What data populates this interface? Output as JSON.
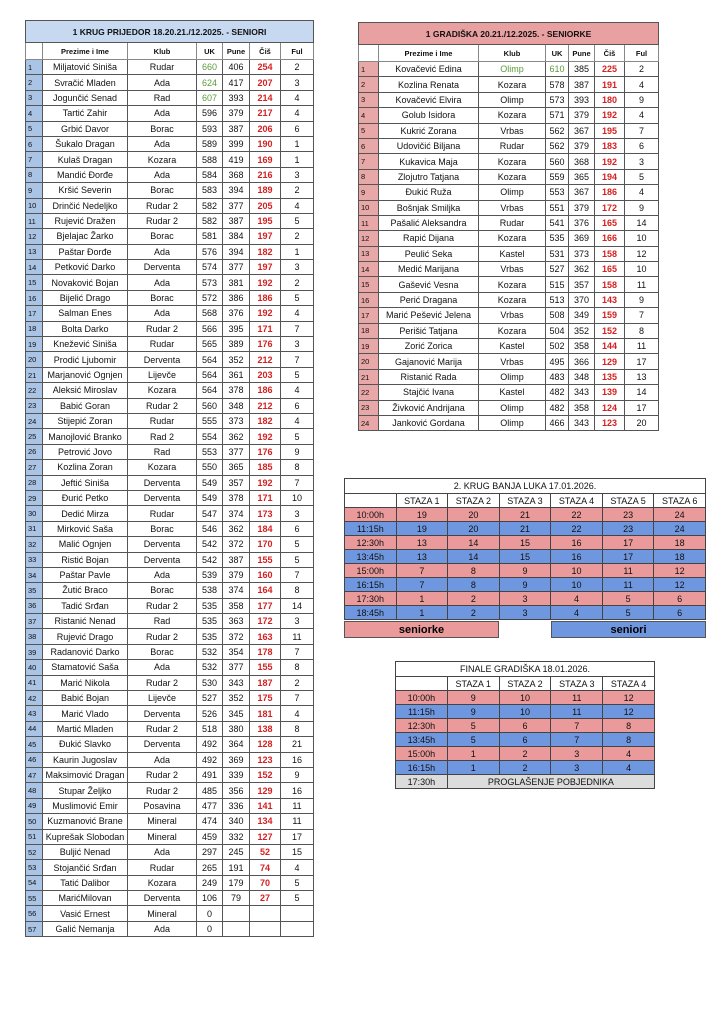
{
  "colors": {
    "senior_header": "#c6d9f1",
    "seniorke_header": "#e8a0a0",
    "pink": "#ea9a9a",
    "blue": "#6f97e0",
    "cis": "#d42020",
    "top_uk": "#5a9a3a"
  },
  "men": {
    "title": "1 KRUG PRIJEDOR 18.20.21./12.2025. - SENIORI",
    "headers": [
      "",
      "Prezime i Ime",
      "Klub",
      "UK",
      "Pune",
      "Čiš",
      "Ful"
    ],
    "rows": [
      [
        "1",
        "Miljatović Siniša",
        "Rudar",
        "660",
        "406",
        "254",
        "2"
      ],
      [
        "2",
        "Svračić Mladen",
        "Ada",
        "624",
        "417",
        "207",
        "3"
      ],
      [
        "3",
        "Jogunčić Senad",
        "Rad",
        "607",
        "393",
        "214",
        "4"
      ],
      [
        "4",
        "Tartić Zahir",
        "Ada",
        "596",
        "379",
        "217",
        "4"
      ],
      [
        "5",
        "Grbić Davor",
        "Borac",
        "593",
        "387",
        "206",
        "6"
      ],
      [
        "6",
        "Šukalo Dragan",
        "Ada",
        "589",
        "399",
        "190",
        "1"
      ],
      [
        "7",
        "Kulaš Dragan",
        "Kozara",
        "588",
        "419",
        "169",
        "1"
      ],
      [
        "8",
        "Mandić Đorđe",
        "Ada",
        "584",
        "368",
        "216",
        "3"
      ],
      [
        "9",
        "Kršić Severin",
        "Borac",
        "583",
        "394",
        "189",
        "2"
      ],
      [
        "10",
        "Drinčić Nedeljko",
        "Rudar 2",
        "582",
        "377",
        "205",
        "4"
      ],
      [
        "11",
        "Rujević Dražen",
        "Rudar 2",
        "582",
        "387",
        "195",
        "5"
      ],
      [
        "12",
        "Bjelajac Žarko",
        "Borac",
        "581",
        "384",
        "197",
        "2"
      ],
      [
        "13",
        "Paštar Đorđe",
        "Ada",
        "576",
        "394",
        "182",
        "1"
      ],
      [
        "14",
        "Petković Darko",
        "Derventa",
        "574",
        "377",
        "197",
        "3"
      ],
      [
        "15",
        "Novaković Bojan",
        "Ada",
        "573",
        "381",
        "192",
        "2"
      ],
      [
        "16",
        "Bijelić Drago",
        "Borac",
        "572",
        "386",
        "186",
        "5"
      ],
      [
        "17",
        "Salman Enes",
        "Ada",
        "568",
        "376",
        "192",
        "4"
      ],
      [
        "18",
        "Bolta Darko",
        "Rudar 2",
        "566",
        "395",
        "171",
        "7"
      ],
      [
        "19",
        "Knežević Siniša",
        "Rudar",
        "565",
        "389",
        "176",
        "3"
      ],
      [
        "20",
        "Prodić Ljubomir",
        "Derventa",
        "564",
        "352",
        "212",
        "7"
      ],
      [
        "21",
        "Marjanović Ognjen",
        "Lijevče",
        "564",
        "361",
        "203",
        "5"
      ],
      [
        "22",
        "Aleksić Miroslav",
        "Kozara",
        "564",
        "378",
        "186",
        "4"
      ],
      [
        "23",
        "Babić Goran",
        "Rudar 2",
        "560",
        "348",
        "212",
        "6"
      ],
      [
        "24",
        "Stijepić Zoran",
        "Rudar",
        "555",
        "373",
        "182",
        "4"
      ],
      [
        "25",
        "Manojlović Branko",
        "Rad 2",
        "554",
        "362",
        "192",
        "5"
      ],
      [
        "26",
        "Petrović Jovo",
        "Rad",
        "553",
        "377",
        "176",
        "9"
      ],
      [
        "27",
        "Kozlina Zoran",
        "Kozara",
        "550",
        "365",
        "185",
        "8"
      ],
      [
        "28",
        "Jeftić Siniša",
        "Derventa",
        "549",
        "357",
        "192",
        "7"
      ],
      [
        "29",
        "Đurić Petko",
        "Derventa",
        "549",
        "378",
        "171",
        "10"
      ],
      [
        "30",
        "Dedić Mirza",
        "Rudar",
        "547",
        "374",
        "173",
        "3"
      ],
      [
        "31",
        "Mirković Saša",
        "Borac",
        "546",
        "362",
        "184",
        "6"
      ],
      [
        "32",
        "Malić Ognjen",
        "Derventa",
        "542",
        "372",
        "170",
        "5"
      ],
      [
        "33",
        "Ristić Bojan",
        "Derventa",
        "542",
        "387",
        "155",
        "5"
      ],
      [
        "34",
        "Paštar Pavle",
        "Ada",
        "539",
        "379",
        "160",
        "7"
      ],
      [
        "35",
        "Žutić Braco",
        "Borac",
        "538",
        "374",
        "164",
        "8"
      ],
      [
        "36",
        "Tadić Srđan",
        "Rudar 2",
        "535",
        "358",
        "177",
        "14"
      ],
      [
        "37",
        "Ristanić Nenad",
        "Rad",
        "535",
        "363",
        "172",
        "3"
      ],
      [
        "38",
        "Rujević Drago",
        "Rudar 2",
        "535",
        "372",
        "163",
        "11"
      ],
      [
        "39",
        "Radanović Darko",
        "Borac",
        "532",
        "354",
        "178",
        "7"
      ],
      [
        "40",
        "Stamatović Saša",
        "Ada",
        "532",
        "377",
        "155",
        "8"
      ],
      [
        "41",
        "Marić Nikola",
        "Rudar 2",
        "530",
        "343",
        "187",
        "2"
      ],
      [
        "42",
        "Babić Bojan",
        "Lijevče",
        "527",
        "352",
        "175",
        "7"
      ],
      [
        "43",
        "Marić Vlado",
        "Derventa",
        "526",
        "345",
        "181",
        "4"
      ],
      [
        "44",
        "Martić Mladen",
        "Rudar 2",
        "518",
        "380",
        "138",
        "8"
      ],
      [
        "45",
        "Đukić Slavko",
        "Derventa",
        "492",
        "364",
        "128",
        "21"
      ],
      [
        "46",
        "Kaurin Jugoslav",
        "Ada",
        "492",
        "369",
        "123",
        "16"
      ],
      [
        "47",
        "Maksimović Dragan",
        "Rudar 2",
        "491",
        "339",
        "152",
        "9"
      ],
      [
        "48",
        "Stupar Željko",
        "Rudar 2",
        "485",
        "356",
        "129",
        "16"
      ],
      [
        "49",
        "Muslimović Emir",
        "Posavina",
        "477",
        "336",
        "141",
        "11"
      ],
      [
        "50",
        "Kuzmanović Brane",
        "Mineral",
        "474",
        "340",
        "134",
        "11"
      ],
      [
        "51",
        "Kuprešak Slobodan",
        "Mineral",
        "459",
        "332",
        "127",
        "17"
      ],
      [
        "52",
        "Buljić Nenad",
        "Ada",
        "297",
        "245",
        "52",
        "15"
      ],
      [
        "53",
        "Stojančić Srđan",
        "Rudar",
        "265",
        "191",
        "74",
        "4"
      ],
      [
        "54",
        "Tatić Dalibor",
        "Kozara",
        "249",
        "179",
        "70",
        "5"
      ],
      [
        "55",
        "MarićMilovan",
        "Derventa",
        "106",
        "79",
        "27",
        "5"
      ],
      [
        "56",
        "Vasić Ernest",
        "Mineral",
        "0",
        "",
        "",
        ""
      ],
      [
        "57",
        "Galić Nemanja",
        "Ada",
        "0",
        "",
        "",
        ""
      ]
    ]
  },
  "women": {
    "title": "1 GRADIŠKA 20.21./12.2025. - SENIORKE",
    "headers": [
      "",
      "Prezime i Ime",
      "Klub",
      "UK",
      "Pune",
      "Čiš",
      "Ful"
    ],
    "rows": [
      [
        "1",
        "Kovačević Edina",
        "Olimp",
        "610",
        "385",
        "225",
        "2"
      ],
      [
        "2",
        "Kozlina Renata",
        "Kozara",
        "578",
        "387",
        "191",
        "4"
      ],
      [
        "3",
        "Kovačević Elvira",
        "Olimp",
        "573",
        "393",
        "180",
        "9"
      ],
      [
        "4",
        "Golub Isidora",
        "Kozara",
        "571",
        "379",
        "192",
        "4"
      ],
      [
        "5",
        "Kukrić Zorana",
        "Vrbas",
        "562",
        "367",
        "195",
        "7"
      ],
      [
        "6",
        "Udovičić Biljana",
        "Rudar",
        "562",
        "379",
        "183",
        "6"
      ],
      [
        "7",
        "Kukavica Maja",
        "Kozara",
        "560",
        "368",
        "192",
        "3"
      ],
      [
        "8",
        "Zlojutro Tatjana",
        "Kozara",
        "559",
        "365",
        "194",
        "5"
      ],
      [
        "9",
        "Đukić Ruža",
        "Olimp",
        "553",
        "367",
        "186",
        "4"
      ],
      [
        "10",
        "Bošnjak Smiljka",
        "Vrbas",
        "551",
        "379",
        "172",
        "9"
      ],
      [
        "11",
        "Pašalić Aleksandra",
        "Rudar",
        "541",
        "376",
        "165",
        "14"
      ],
      [
        "12",
        "Rapić Dijana",
        "Kozara",
        "535",
        "369",
        "166",
        "10"
      ],
      [
        "13",
        "Peulić Seka",
        "Kastel",
        "531",
        "373",
        "158",
        "12"
      ],
      [
        "14",
        "Medić Marijana",
        "Vrbas",
        "527",
        "362",
        "165",
        "10"
      ],
      [
        "15",
        "Gašević Vesna",
        "Kozara",
        "515",
        "357",
        "158",
        "11"
      ],
      [
        "16",
        "Perić Dragana",
        "Kozara",
        "513",
        "370",
        "143",
        "9"
      ],
      [
        "17",
        "Marić Pešević Jelena",
        "Vrbas",
        "508",
        "349",
        "159",
        "7"
      ],
      [
        "18",
        "Perišić Tatjana",
        "Kozara",
        "504",
        "352",
        "152",
        "8"
      ],
      [
        "19",
        "Zorić Zorica",
        "Kastel",
        "502",
        "358",
        "144",
        "11"
      ],
      [
        "20",
        "Gajanović Marija",
        "Vrbas",
        "495",
        "366",
        "129",
        "17"
      ],
      [
        "21",
        "Ristanić Rada",
        "Olimp",
        "483",
        "348",
        "135",
        "13"
      ],
      [
        "22",
        "Stajčić Ivana",
        "Kastel",
        "482",
        "343",
        "139",
        "14"
      ],
      [
        "23",
        "Živković Andrijana",
        "Olimp",
        "482",
        "358",
        "124",
        "17"
      ],
      [
        "24",
        "Janković Gordana",
        "Olimp",
        "466",
        "343",
        "123",
        "20"
      ]
    ]
  },
  "round2": {
    "title": "2. KRUG BANJA LUKA 17.01.2026.",
    "headers": [
      "",
      "STAZA 1",
      "STAZA 2",
      "STAZA 3",
      "STAZA 4",
      "STAZA 5",
      "STAZA 6"
    ],
    "rows": [
      {
        "group": "seniorke",
        "cells": [
          "10:00h",
          "19",
          "20",
          "21",
          "22",
          "23",
          "24"
        ]
      },
      {
        "group": "seniori",
        "cells": [
          "11:15h",
          "19",
          "20",
          "21",
          "22",
          "23",
          "24"
        ]
      },
      {
        "group": "seniorke",
        "cells": [
          "12:30h",
          "13",
          "14",
          "15",
          "16",
          "17",
          "18"
        ]
      },
      {
        "group": "seniori",
        "cells": [
          "13:45h",
          "13",
          "14",
          "15",
          "16",
          "17",
          "18"
        ]
      },
      {
        "group": "seniorke",
        "cells": [
          "15:00h",
          "7",
          "8",
          "9",
          "10",
          "11",
          "12"
        ]
      },
      {
        "group": "seniori",
        "cells": [
          "16:15h",
          "7",
          "8",
          "9",
          "10",
          "11",
          "12"
        ]
      },
      {
        "group": "seniorke",
        "cells": [
          "17:30h",
          "1",
          "2",
          "3",
          "4",
          "5",
          "6"
        ]
      },
      {
        "group": "seniori",
        "cells": [
          "18:45h",
          "1",
          "2",
          "3",
          "4",
          "5",
          "6"
        ]
      }
    ],
    "legend": {
      "seniorke": "seniorke",
      "seniori": "seniori"
    }
  },
  "final": {
    "title": "FINALE GRADIŠKA 18.01.2026.",
    "headers": [
      "",
      "STAZA 1",
      "STAZA 2",
      "STAZA 3",
      "STAZA 4"
    ],
    "rows": [
      {
        "group": "seniorke",
        "cells": [
          "10:00h",
          "9",
          "10",
          "11",
          "12"
        ]
      },
      {
        "group": "seniori",
        "cells": [
          "11:15h",
          "9",
          "10",
          "11",
          "12"
        ]
      },
      {
        "group": "seniorke",
        "cells": [
          "12:30h",
          "5",
          "6",
          "7",
          "8"
        ]
      },
      {
        "group": "seniori",
        "cells": [
          "13:45h",
          "5",
          "6",
          "7",
          "8"
        ]
      },
      {
        "group": "seniorke",
        "cells": [
          "15:00h",
          "1",
          "2",
          "3",
          "4"
        ]
      },
      {
        "group": "seniori",
        "cells": [
          "16:15h",
          "1",
          "2",
          "3",
          "4"
        ]
      }
    ],
    "closing": {
      "time": "17:30h",
      "label": "PROGLAŠENJE POBJEDNIKA"
    }
  }
}
